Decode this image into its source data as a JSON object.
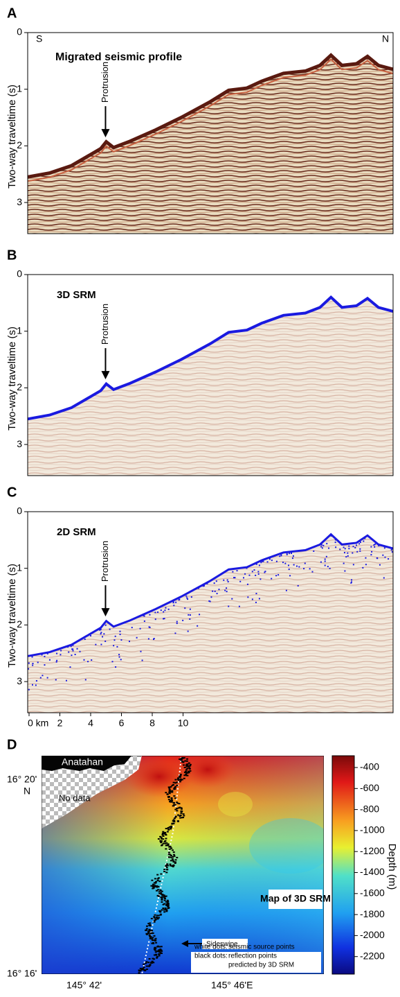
{
  "panels": [
    {
      "label": "A",
      "title": "Migrated seismic profile",
      "y_axis_label": "Two-way traveltime (s)",
      "yticks": [
        "0",
        "1",
        "2",
        "3"
      ],
      "annotation": "Protrusion",
      "left_corner": "S",
      "right_corner": "N"
    },
    {
      "label": "B",
      "title": "3D SRM",
      "y_axis_label": "Two-way traveltime (s)",
      "yticks": [
        "0",
        "1",
        "2",
        "3"
      ],
      "annotation": "Protrusion"
    },
    {
      "label": "C",
      "title": "2D SRM",
      "y_axis_label": "Two-way traveltime (s)",
      "yticks": [
        "0",
        "1",
        "2",
        "3"
      ],
      "annotation": "Protrusion",
      "xticks": [
        "0 km",
        "2",
        "4",
        "6",
        "8",
        "10"
      ]
    }
  ],
  "map": {
    "label": "D",
    "island": "Anatahan",
    "no_data": "No data",
    "lat_top": "16° 20'",
    "lat_hemisphere": "N",
    "lat_bottom": "16° 16'",
    "lon_left": "145° 42'",
    "lon_right": "145° 46'E",
    "title": "Map of 3D SRM",
    "sideswipe": "Sideswipe",
    "legend": [
      {
        "key": "white dots:",
        "text": "seismic source points"
      },
      {
        "key": "black dots:",
        "text": "reflection points"
      },
      {
        "key": "",
        "text": "predicted by 3D SRM"
      }
    ],
    "colorbar_label": "Depth (m)",
    "colorbar_ticks": [
      "-400",
      "-600",
      "-800",
      "-1000",
      "-1200",
      "-1400",
      "-1600",
      "-1800",
      "-2000",
      "-2200"
    ]
  }
}
